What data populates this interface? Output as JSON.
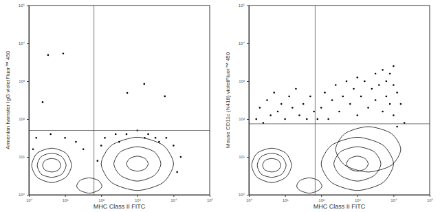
{
  "chart_data": [
    {
      "type": "scatter",
      "xlabel": "MHC Class II FITC",
      "ylabel": "Armenian hamster IgG violetFluor™ 450",
      "log": true,
      "xlim": [
        1,
        100000
      ],
      "ylim": [
        1,
        100000
      ],
      "xticks": [
        {
          "value": 1,
          "label": "10⁰"
        },
        {
          "value": 10,
          "label": "10¹"
        },
        {
          "value": 100,
          "label": "10²"
        },
        {
          "value": 1000,
          "label": "10³"
        },
        {
          "value": 10000,
          "label": "10⁴"
        },
        {
          "value": 100000,
          "label": "10⁵"
        }
      ],
      "yticks": [
        {
          "value": 1,
          "label": "10⁰"
        },
        {
          "value": 10,
          "label": "10¹"
        },
        {
          "value": 100,
          "label": "10²"
        },
        {
          "value": 1000,
          "label": "10³"
        },
        {
          "value": 10000,
          "label": "10⁴"
        },
        {
          "value": 100000,
          "label": "10⁵"
        }
      ],
      "gate": {
        "x": 63,
        "y": 50
      },
      "series": [
        {
          "type": "scatter",
          "marker": "circle",
          "color": "#000000",
          "x": [
            3.4,
            8.9,
            2.4,
            1550,
            525,
            5750,
            126,
            251,
            501,
            1000,
            1995,
            3162,
            6310,
            10000,
            15849,
            316,
            1585,
            3981,
            12589,
            79,
            100,
            1.6,
            4,
            10,
            20,
            32,
            1.3
          ],
          "y": [
            4900,
            5400,
            280,
            850,
            490,
            400,
            32,
            40,
            40,
            50,
            40,
            32,
            32,
            20,
            10,
            25,
            32,
            25,
            4,
            7.9,
            20,
            32,
            40,
            32,
            25,
            16,
            16
          ]
        },
        {
          "type": "line",
          "line_style": "solid",
          "color": "#000000",
          "x": [
            15.1,
            10.5,
            4.3,
            1.7,
            1.2,
            1.7,
            4.3,
            10.5
          ],
          "y": [
            6.0,
            12.6,
            17.0,
            12.6,
            6.0,
            2.9,
            2.1,
            2.9
          ]
        },
        {
          "type": "line",
          "line_style": "solid",
          "color": "#000000",
          "x": [
            10.7,
            8.1,
            4.3,
            2.2,
            1.7,
            2.2,
            4.3,
            8.1
          ],
          "y": [
            6.0,
            10.2,
            12.6,
            10.2,
            6.0,
            3.5,
            2.9,
            3.5
          ]
        },
        {
          "type": "line",
          "line_style": "solid",
          "color": "#000000",
          "x": [
            7.6,
            6.5,
            4.3,
            2.8,
            2.4,
            2.8,
            4.3,
            6.5
          ],
          "y": [
            6.0,
            8.1,
            9.1,
            8.1,
            6.0,
            4.5,
            4.0,
            4.5
          ]
        },
        {
          "type": "line",
          "line_style": "solid",
          "color": "#000000",
          "x": [
            10000,
            5129,
            1000,
            195,
            100,
            195,
            1000,
            5129
          ],
          "y": [
            6.6,
            20.4,
            33.1,
            20.4,
            6.6,
            2.1,
            1.3,
            2.1
          ]
        },
        {
          "type": "line",
          "line_style": "solid",
          "color": "#000000",
          "x": [
            4467,
            2884,
            1000,
            347,
            224,
            347,
            1000,
            2884
          ],
          "y": [
            6.6,
            13.8,
            18.6,
            13.8,
            6.6,
            3.2,
            2.3,
            3.2
          ]
        },
        {
          "type": "line",
          "line_style": "solid",
          "color": "#000000",
          "x": [
            1995,
            1622,
            1000,
            617,
            501,
            617,
            1000,
            1622
          ],
          "y": [
            6.6,
            9.1,
            10.5,
            9.1,
            6.6,
            4.8,
            4.2,
            4.8
          ]
        },
        {
          "type": "line",
          "line_style": "solid",
          "color": "#000000",
          "x": [
            105,
            83,
            47,
            26,
            21,
            26,
            47,
            83
          ],
          "y": [
            1.7,
            2.4,
            2.8,
            2.4,
            1.7,
            1.3,
            1.1,
            1.3
          ]
        }
      ]
    },
    {
      "type": "scatter",
      "xlabel": "MHC Class II FITC",
      "ylabel": "Mouse CD11c (N418) violetFluor™ 450",
      "log": true,
      "xlim": [
        1,
        100000
      ],
      "ylim": [
        1,
        100000
      ],
      "xticks": [
        {
          "value": 1,
          "label": "10⁰"
        },
        {
          "value": 10,
          "label": "10¹"
        },
        {
          "value": 100,
          "label": "10²"
        },
        {
          "value": 1000,
          "label": "10³"
        },
        {
          "value": 10000,
          "label": "10⁴"
        },
        {
          "value": 100000,
          "label": "10⁵"
        }
      ],
      "yticks": [
        {
          "value": 1,
          "label": "10⁰"
        },
        {
          "value": 10,
          "label": "10¹"
        },
        {
          "value": 100,
          "label": "10²"
        },
        {
          "value": 1000,
          "label": "10³"
        },
        {
          "value": 10000,
          "label": "10⁴"
        },
        {
          "value": 100000,
          "label": "10⁵"
        }
      ],
      "gate": {
        "x": 68,
        "y": 75
      },
      "series": [
        {
          "type": "scatter",
          "marker": "circle",
          "color": "#000000",
          "x": [
            1.6,
            2,
            2.5,
            3.2,
            4,
            5,
            6.3,
            7.9,
            10,
            13,
            16,
            20,
            25,
            32,
            40,
            50,
            63,
            79,
            100,
            126,
            158,
            200,
            251,
            316,
            398,
            501,
            631,
            794,
            1000,
            1000,
            1259,
            1585,
            1995,
            2512,
            3162,
            3162,
            3981,
            5012,
            5012,
            6310,
            6310,
            7943,
            7943,
            10000,
            10000,
            12589,
            12589,
            15849,
            19953,
            10000
          ],
          "y": [
            100,
            200,
            79,
            316,
            126,
            501,
            158,
            251,
            100,
            398,
            200,
            631,
            126,
            251,
            100,
            398,
            158,
            100,
            200,
            501,
            100,
            316,
            794,
            158,
            398,
            1000,
            251,
            631,
            126,
            1259,
            398,
            1000,
            200,
            631,
            1585,
            316,
            794,
            1995,
            158,
            1000,
            398,
            1585,
            251,
            794,
            126,
            501,
            63,
            251,
            79,
            2512
          ]
        },
        {
          "type": "line",
          "line_style": "solid",
          "color": "#000000",
          "x": [
            15.1,
            10.5,
            4.3,
            1.7,
            1.2,
            1.7,
            4.3,
            10.5
          ],
          "y": [
            6.0,
            12.6,
            17.0,
            12.6,
            6.0,
            2.9,
            2.1,
            2.9
          ]
        },
        {
          "type": "line",
          "line_style": "solid",
          "color": "#000000",
          "x": [
            10.7,
            8.1,
            4.3,
            2.2,
            1.7,
            2.2,
            4.3,
            8.1
          ],
          "y": [
            6.0,
            10.2,
            12.6,
            10.2,
            6.0,
            3.5,
            2.9,
            3.5
          ]
        },
        {
          "type": "line",
          "line_style": "solid",
          "color": "#000000",
          "x": [
            7.6,
            6.5,
            4.3,
            2.8,
            2.4,
            2.8,
            4.3,
            6.5
          ],
          "y": [
            6.0,
            8.1,
            9.1,
            8.1,
            6.0,
            4.5,
            4.0,
            4.5
          ]
        },
        {
          "type": "line",
          "line_style": "solid",
          "color": "#000000",
          "x": [
            15849,
            8710,
            1995,
            457,
            251,
            457,
            1995,
            8710
          ],
          "y": [
            15.8,
            41.7,
            63.1,
            41.7,
            15.8,
            6.0,
            4.0,
            6.0
          ]
        },
        {
          "type": "line",
          "line_style": "solid",
          "color": "#000000",
          "x": [
            10000,
            5129,
            1000,
            195,
            100,
            195,
            1000,
            5129
          ],
          "y": [
            6.6,
            20.4,
            33.1,
            20.4,
            6.6,
            2.1,
            1.3,
            2.1
          ]
        },
        {
          "type": "line",
          "line_style": "solid",
          "color": "#000000",
          "x": [
            4467,
            2884,
            1000,
            347,
            224,
            347,
            1000,
            2884
          ],
          "y": [
            6.6,
            13.8,
            18.6,
            13.8,
            6.6,
            3.2,
            2.3,
            3.2
          ]
        },
        {
          "type": "line",
          "line_style": "solid",
          "color": "#000000",
          "x": [
            1995,
            1622,
            1000,
            617,
            501,
            617,
            1000,
            1622
          ],
          "y": [
            6.6,
            9.1,
            10.5,
            9.1,
            6.6,
            4.8,
            4.2,
            4.8
          ]
        },
        {
          "type": "line",
          "line_style": "solid",
          "color": "#000000",
          "x": [
            105,
            83,
            47,
            26,
            21,
            26,
            47,
            83
          ],
          "y": [
            1.7,
            2.4,
            2.8,
            2.4,
            1.7,
            1.3,
            1.1,
            1.3
          ]
        }
      ]
    }
  ]
}
